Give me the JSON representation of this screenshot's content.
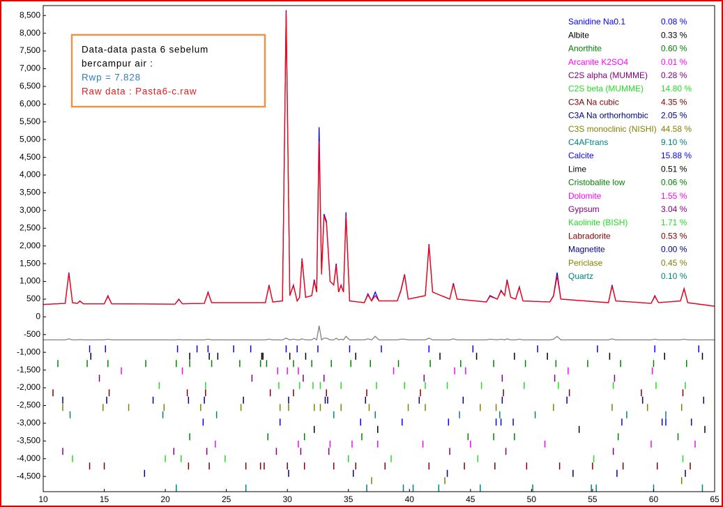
{
  "chart_data": {
    "type": "line",
    "annotations": [
      "Data-data pasta 6 sebelum",
      "bercampur air :",
      "Rwp =  7.828",
      "Raw data : Pasta6-c.raw"
    ],
    "xlim": [
      10,
      65
    ],
    "xticks": [
      10,
      15,
      20,
      25,
      30,
      35,
      40,
      45,
      50,
      55,
      60,
      65
    ],
    "ylim": [
      -4930,
      8780
    ],
    "yticks": [
      {
        "value": 8500,
        "label": "8,500"
      },
      {
        "value": 8000,
        "label": "8,000"
      },
      {
        "value": 7500,
        "label": "7,500"
      },
      {
        "value": 7000,
        "label": "7,000"
      },
      {
        "value": 6500,
        "label": "6,500"
      },
      {
        "value": 6000,
        "label": "6,000"
      },
      {
        "value": 5500,
        "label": "5,500"
      },
      {
        "value": 5000,
        "label": "5,000"
      },
      {
        "value": 4500,
        "label": "4,500"
      },
      {
        "value": 4000,
        "label": "4,000"
      },
      {
        "value": 3500,
        "label": "3,500"
      },
      {
        "value": 3000,
        "label": "3,000"
      },
      {
        "value": 2500,
        "label": "2,500"
      },
      {
        "value": 2000,
        "label": "2,000"
      },
      {
        "value": 1500,
        "label": "1,500"
      },
      {
        "value": 1000,
        "label": "1,000"
      },
      500,
      0,
      -500,
      {
        "value": -1000,
        "label": "-1,000"
      },
      {
        "value": -1500,
        "label": "-1,500"
      },
      {
        "value": -2000,
        "label": "-2,000"
      },
      {
        "value": -2500,
        "label": "-2,500"
      },
      {
        "value": -3000,
        "label": "-3,000"
      },
      {
        "value": -3500,
        "label": "-3,500"
      },
      {
        "value": -4000,
        "label": "-4,000"
      },
      {
        "value": -4500,
        "label": "-4,500"
      }
    ],
    "x": [
      10,
      11.8,
      12.1,
      12.4,
      12.8,
      13.0,
      13.3,
      15.0,
      15.3,
      15.6,
      20.8,
      21.1,
      21.4,
      23.2,
      23.5,
      23.8,
      28.2,
      28.5,
      28.8,
      29.6,
      29.9,
      30.2,
      30.5,
      30.8,
      31.0,
      31.2,
      31.5,
      32.0,
      32.2,
      32.4,
      32.6,
      32.8,
      33.0,
      33.2,
      33.5,
      33.8,
      34.0,
      34.2,
      34.4,
      34.6,
      34.8,
      35.1,
      36.3,
      36.6,
      36.9,
      37.2,
      37.5,
      39.0,
      39.3,
      39.6,
      39.9,
      41.3,
      41.6,
      41.9,
      43.3,
      43.6,
      43.9,
      46.3,
      46.6,
      47.2,
      47.5,
      47.8,
      48.0,
      48.3,
      48.7,
      49.0,
      49.3,
      51.5,
      51.8,
      52.1,
      52.4,
      56.3,
      56.6,
      56.9,
      59.8,
      60.1,
      60.4,
      62.2,
      62.5,
      62.8,
      65
    ],
    "series": [
      {
        "color": "#0000ff",
        "values": [
          350,
          380,
          1250,
          400,
          380,
          450,
          370,
          370,
          600,
          370,
          360,
          500,
          370,
          380,
          700,
          400,
          400,
          900,
          420,
          450,
          8650,
          600,
          900,
          450,
          550,
          1650,
          550,
          600,
          1050,
          700,
          5350,
          1200,
          2900,
          2700,
          1000,
          900,
          1500,
          700,
          900,
          700,
          2950,
          450,
          400,
          650,
          450,
          700,
          450,
          450,
          750,
          1200,
          500,
          600,
          2050,
          700,
          500,
          950,
          500,
          420,
          600,
          500,
          750,
          600,
          1050,
          550,
          500,
          850,
          450,
          420,
          600,
          1250,
          500,
          400,
          900,
          450,
          380,
          600,
          400,
          450,
          800,
          400,
          300
        ]
      },
      {
        "color": "#ff0000",
        "values": [
          350,
          380,
          1220,
          400,
          380,
          440,
          370,
          370,
          580,
          370,
          360,
          490,
          370,
          380,
          680,
          400,
          400,
          880,
          420,
          450,
          8600,
          600,
          880,
          450,
          550,
          1620,
          550,
          600,
          1000,
          700,
          4950,
          1200,
          2850,
          2650,
          1000,
          900,
          1450,
          700,
          880,
          700,
          2850,
          450,
          400,
          620,
          450,
          600,
          450,
          450,
          730,
          1180,
          500,
          600,
          2000,
          700,
          500,
          920,
          500,
          420,
          580,
          500,
          730,
          600,
          1020,
          550,
          500,
          830,
          450,
          420,
          580,
          1150,
          500,
          400,
          870,
          450,
          380,
          580,
          400,
          450,
          780,
          400,
          300
        ]
      },
      {
        "color": "#808080",
        "values": [
          -650,
          -650,
          -620,
          -650,
          -650,
          -640,
          -650,
          -650,
          -630,
          -650,
          -650,
          -640,
          -650,
          -650,
          -630,
          -650,
          -650,
          -630,
          -650,
          -650,
          -600,
          -650,
          -630,
          -650,
          -650,
          -620,
          -650,
          -650,
          -600,
          -650,
          -250,
          -650,
          -600,
          -600,
          -650,
          -650,
          -600,
          -650,
          -630,
          -650,
          -550,
          -650,
          -650,
          -620,
          -650,
          -550,
          -650,
          -650,
          -630,
          -630,
          -650,
          -650,
          -600,
          -650,
          -650,
          -620,
          -650,
          -650,
          -630,
          -650,
          -630,
          -650,
          -620,
          -650,
          -650,
          -630,
          -650,
          -650,
          -630,
          -550,
          -650,
          -650,
          -620,
          -650,
          -650,
          -630,
          -650,
          -650,
          -630,
          -650,
          -650
        ]
      }
    ],
    "phases": [
      {
        "name": "Sanidine Na0.1",
        "color": "#0000ff",
        "value": 0.08,
        "value_label": "0.08 %",
        "reflections": [
          13.8,
          15.1,
          21.0,
          22.6,
          23.5,
          25.6,
          27.0,
          29.9,
          30.8,
          32.5,
          35.1,
          37.7,
          41.6,
          45.2,
          50.5,
          55.4,
          60.1,
          63.7
        ]
      },
      {
        "name": "Albite",
        "color": "#000000",
        "value": 0.33,
        "value_label": "0.33 %",
        "reflections": [
          13.9,
          22.0,
          23.6,
          24.3,
          27.9,
          28.0,
          30.2,
          31.5,
          35.6,
          42.5,
          45.5,
          48.6,
          51.3,
          56.4,
          60.9,
          64.0
        ]
      },
      {
        "name": "Anorthite",
        "color": "#008000",
        "value": 0.6,
        "value_label": "0.60 %",
        "reflections": [
          11.2,
          13.6,
          15.3,
          18.4,
          20.9,
          22.0,
          23.8,
          26.1,
          27.8,
          28.3,
          30.5,
          32.0,
          33.6,
          35.2,
          36.8,
          39.1,
          41.7,
          44.2,
          46.9,
          49.5,
          52.0,
          54.6,
          57.3,
          60.0,
          62.7
        ]
      },
      {
        "name": "Arcanite K2SO4",
        "color": "#ff00ff",
        "value": 0.01,
        "value_label": "0.01 %",
        "reflections": [
          16.4,
          21.4,
          29.2,
          30.0,
          30.9,
          38.7,
          43.7,
          44.6,
          53.0,
          59.9
        ]
      },
      {
        "name": "C2S alpha (MUMME)",
        "color": "#800080",
        "value": 0.28,
        "value_label": "0.28 %",
        "reflections": [
          14.6,
          27.1,
          31.3,
          33.0,
          41.2,
          47.6,
          51.9,
          56.8
        ]
      },
      {
        "name": "C2S beta (MUMME)",
        "color": "#22dd22",
        "value": 14.8,
        "value_label": "14.80 %",
        "reflections": [
          19.5,
          23.3,
          29.3,
          31.0,
          32.1,
          32.7,
          34.4,
          37.3,
          39.6,
          41.3,
          43.1,
          45.9,
          49.4,
          52.2,
          56.7,
          60.2,
          62.6
        ]
      },
      {
        "name": "C3A Na cubic",
        "color": "#800000",
        "value": 4.35,
        "value_label": "4.35 %",
        "reflections": [
          10.8,
          15.4,
          21.8,
          23.3,
          28.6,
          30.5,
          33.2,
          36.5,
          40.9,
          47.7,
          53.1,
          59.0,
          62.4
        ]
      },
      {
        "name": "C3A Na orthorhombic",
        "color": "#000080",
        "value": 2.05,
        "value_label": "2.05 %",
        "reflections": [
          11.6,
          15.2,
          19.0,
          21.9,
          23.2,
          26.4,
          30.1,
          33.1,
          33.3,
          36.4,
          40.8,
          44.4,
          47.6,
          52.9,
          59.1,
          64.1
        ]
      },
      {
        "name": "C3S monoclinic (NISHI)",
        "color": "#808000",
        "value": 44.58,
        "value_label": "44.58 %",
        "reflections": [
          11.6,
          14.9,
          17.0,
          19.9,
          22.9,
          26.2,
          29.4,
          30.1,
          32.2,
          32.7,
          34.4,
          36.7,
          39.9,
          41.3,
          45.8,
          47.1,
          51.8,
          56.6,
          59.5,
          62.3
        ]
      },
      {
        "name": "C4AFtrans",
        "color": "#008080",
        "value": 9.1,
        "value_label": "9.10 %",
        "reflections": [
          12.2,
          19.8,
          24.2,
          33.8,
          37.2,
          44.1,
          47.4,
          50.3,
          57.8,
          61.0
        ]
      },
      {
        "name": "Calcite",
        "color": "#0000ff",
        "value": 15.88,
        "value_label": "15.88 %",
        "reflections": [
          23.1,
          29.4,
          36.0,
          39.4,
          43.2,
          47.1,
          47.5,
          48.5,
          57.4,
          60.7,
          61.0,
          63.1
        ]
      },
      {
        "name": "Lime",
        "color": "#000000",
        "value": 0.51,
        "value_label": "0.51 %",
        "reflections": [
          32.2,
          37.4,
          53.9,
          64.2
        ]
      },
      {
        "name": "Cristobalite low",
        "color": "#008000",
        "value": 0.06,
        "value_label": "0.06 %",
        "reflections": [
          22.0,
          28.4,
          31.4,
          36.1,
          44.8,
          46.9,
          48.6,
          57.1,
          62.0
        ]
      },
      {
        "name": "Dolomite",
        "color": "#ff00ff",
        "value": 1.55,
        "value_label": "1.55 %",
        "reflections": [
          24.1,
          30.9,
          33.5,
          35.3,
          37.4,
          41.1,
          45.0,
          51.1,
          59.8,
          63.4
        ]
      },
      {
        "name": "Gypsum",
        "color": "#800080",
        "value": 3.04,
        "value_label": "3.04 %",
        "reflections": [
          11.6,
          20.7,
          23.4,
          29.1,
          31.1,
          33.4,
          43.3,
          47.9,
          56.7
        ]
      },
      {
        "name": "Kaolinite (BISH)",
        "color": "#22dd22",
        "value": 1.71,
        "value_label": "1.71 %",
        "reflections": [
          12.4,
          20.0,
          21.3,
          24.9,
          35.0,
          38.5,
          45.6,
          55.1,
          62.4
        ]
      },
      {
        "name": "Labradorite",
        "color": "#800000",
        "value": 0.53,
        "value_label": "0.53 %",
        "reflections": [
          13.8,
          15.0,
          21.9,
          23.6,
          26.6,
          27.8,
          28.1,
          30.0,
          31.4,
          33.8,
          35.6,
          38.0,
          41.6,
          44.5,
          47.0,
          49.6,
          52.3,
          55.0,
          57.5,
          60.3,
          63.0
        ]
      },
      {
        "name": "Magnetite",
        "color": "#000080",
        "value": 0.0,
        "value_label": "0.00 %",
        "reflections": [
          18.3,
          30.1,
          35.4,
          43.1,
          53.4,
          57.0,
          62.6
        ]
      },
      {
        "name": "Periclase",
        "color": "#808000",
        "value": 0.45,
        "value_label": "0.45 %",
        "reflections": [
          36.9,
          42.9,
          62.3
        ]
      },
      {
        "name": "Quartz",
        "color": "#008080",
        "value": 0.1,
        "value_label": "0.10 %",
        "reflections": [
          20.9,
          26.6,
          36.5,
          39.5,
          40.3,
          42.4,
          45.8,
          50.1,
          54.9,
          55.3,
          60.0,
          64.0
        ]
      }
    ]
  }
}
